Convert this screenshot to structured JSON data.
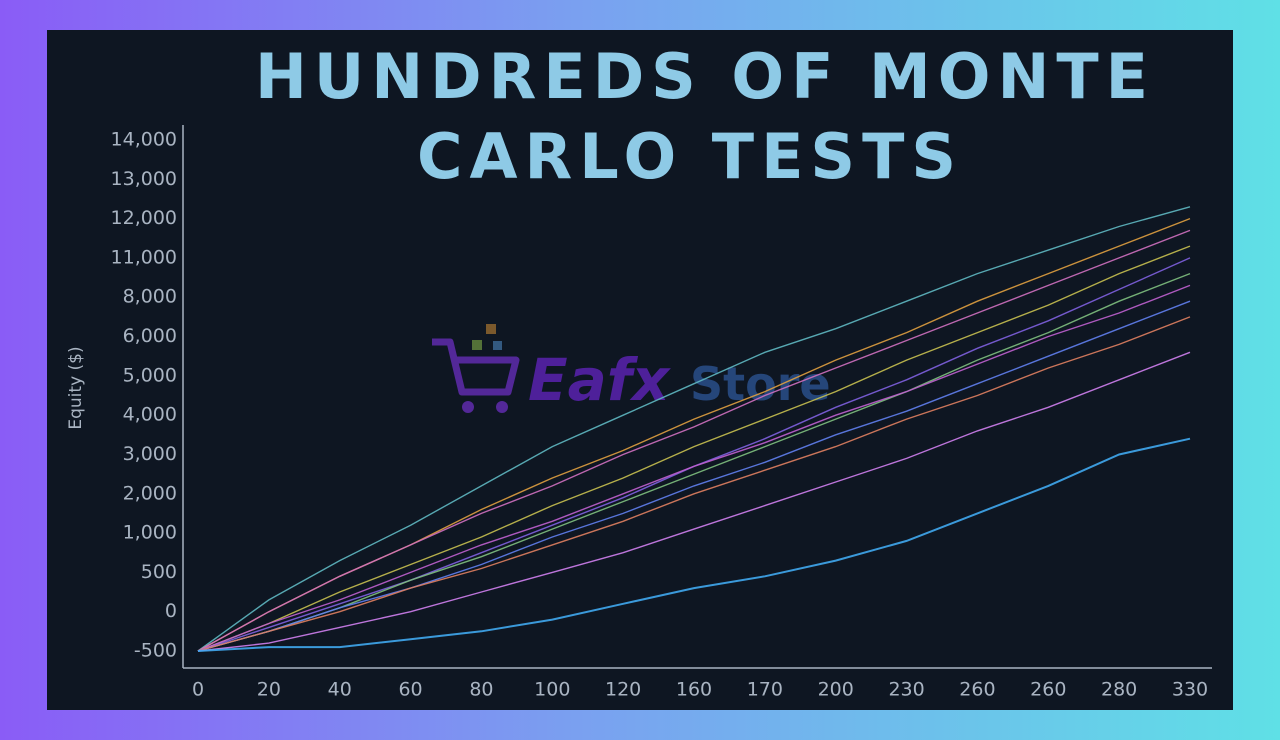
{
  "chart_data": {
    "type": "line",
    "title_lines": [
      "HUNDREDS OF MONTE",
      "CARLO TESTS"
    ],
    "y_label": "Equity ($)",
    "watermark": [
      "Eafx",
      "Store"
    ],
    "categories": [
      "0",
      "20",
      "40",
      "60",
      "80",
      "100",
      "120",
      "160",
      "170",
      "200",
      "230",
      "260",
      "260",
      "280",
      "330"
    ],
    "y_categories": [
      "-500",
      "0",
      "500",
      "1,000",
      "2,000",
      "3,000",
      "4,000",
      "5,000",
      "6,000",
      "8,000",
      "11,000",
      "12,000",
      "13,000",
      "14,000"
    ],
    "series": [
      {
        "color": "#5fb8c2",
        "values": [
          0,
          1.3,
          2.3,
          3.2,
          4.2,
          5.2,
          6.0,
          6.8,
          7.6,
          8.2,
          8.9,
          9.6,
          10.2,
          10.8,
          11.3
        ]
      },
      {
        "color": "#e0a040",
        "values": [
          0,
          1.0,
          1.9,
          2.7,
          3.6,
          4.4,
          5.1,
          5.9,
          6.6,
          7.4,
          8.1,
          8.9,
          9.6,
          10.3,
          11.0
        ]
      },
      {
        "color": "#d070c0",
        "values": [
          0,
          1.0,
          1.9,
          2.7,
          3.5,
          4.2,
          5.0,
          5.7,
          6.5,
          7.2,
          7.9,
          8.6,
          9.3,
          10.0,
          10.7
        ]
      },
      {
        "color": "#c8c050",
        "values": [
          0,
          0.7,
          1.5,
          2.2,
          2.9,
          3.7,
          4.4,
          5.2,
          5.9,
          6.6,
          7.4,
          8.1,
          8.8,
          9.6,
          10.3
        ]
      },
      {
        "color": "#8060e0",
        "values": [
          0,
          0.6,
          1.2,
          1.8,
          2.5,
          3.2,
          3.9,
          4.7,
          5.4,
          6.2,
          6.9,
          7.7,
          8.4,
          9.2,
          10.0
        ]
      },
      {
        "color": "#80c080",
        "values": [
          0,
          0.5,
          1.1,
          1.8,
          2.4,
          3.1,
          3.8,
          4.5,
          5.2,
          5.9,
          6.6,
          7.4,
          8.1,
          8.9,
          9.6
        ]
      },
      {
        "color": "#c060d0",
        "values": [
          0,
          0.7,
          1.3,
          2.0,
          2.7,
          3.3,
          4.0,
          4.7,
          5.3,
          6.0,
          6.6,
          7.3,
          8.0,
          8.6,
          9.3
        ]
      },
      {
        "color": "#6080f0",
        "values": [
          0,
          0.5,
          1.1,
          1.6,
          2.2,
          2.9,
          3.5,
          4.2,
          4.8,
          5.5,
          6.1,
          6.8,
          7.5,
          8.2,
          8.9
        ]
      },
      {
        "color": "#e08060",
        "values": [
          0,
          0.5,
          1.0,
          1.6,
          2.1,
          2.7,
          3.3,
          4.0,
          4.6,
          5.2,
          5.9,
          6.5,
          7.2,
          7.8,
          8.5
        ]
      },
      {
        "color": "#d080f0",
        "values": [
          0,
          0.2,
          0.6,
          1.0,
          1.5,
          2.0,
          2.5,
          3.1,
          3.7,
          4.3,
          4.9,
          5.6,
          6.2,
          6.9,
          7.6
        ]
      },
      {
        "color": "#40a8f0",
        "values": [
          0,
          0.1,
          0.1,
          0.3,
          0.5,
          0.8,
          1.2,
          1.6,
          1.9,
          2.3,
          2.8,
          3.5,
          4.2,
          5.0,
          5.4
        ]
      }
    ]
  }
}
